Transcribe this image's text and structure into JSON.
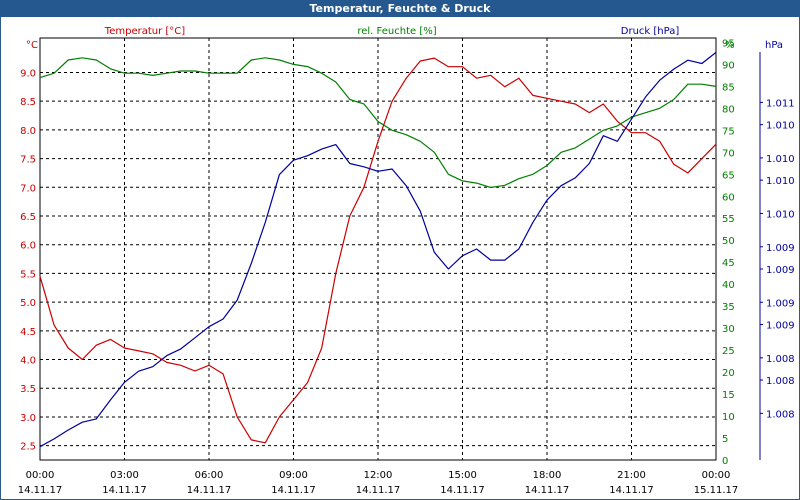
{
  "window": {
    "title": "Temperatur, Feuchte & Druck"
  },
  "colors": {
    "temp": "#cc0000",
    "humidity": "#008000",
    "pressure": "#00009c",
    "grid": "#000000",
    "title_bg": "#24588f"
  },
  "chart_data": {
    "type": "line",
    "title": "Temperatur, Feuchte & Druck",
    "x": [
      "00:00",
      "00:30",
      "01:00",
      "01:30",
      "02:00",
      "02:30",
      "03:00",
      "03:30",
      "04:00",
      "04:30",
      "05:00",
      "05:30",
      "06:00",
      "06:30",
      "07:00",
      "07:30",
      "08:00",
      "08:30",
      "09:00",
      "09:30",
      "10:00",
      "10:30",
      "11:00",
      "11:30",
      "12:00",
      "12:30",
      "13:00",
      "13:30",
      "14:00",
      "14:30",
      "15:00",
      "15:30",
      "16:00",
      "16:30",
      "17:00",
      "17:30",
      "18:00",
      "18:30",
      "19:00",
      "19:30",
      "20:00",
      "20:30",
      "21:00",
      "21:30",
      "22:00",
      "22:30",
      "23:00",
      "23:30",
      "24:00"
    ],
    "x_ticks": [
      {
        "time": "00:00",
        "date": "14.11.17"
      },
      {
        "time": "03:00",
        "date": "14.11.17"
      },
      {
        "time": "06:00",
        "date": "14.11.17"
      },
      {
        "time": "09:00",
        "date": "14.11.17"
      },
      {
        "time": "12:00",
        "date": "14.11.17"
      },
      {
        "time": "15:00",
        "date": "14.11.17"
      },
      {
        "time": "18:00",
        "date": "14.11.17"
      },
      {
        "time": "21:00",
        "date": "14.11.17"
      },
      {
        "time": "00:00",
        "date": "15.11.17"
      }
    ],
    "series": [
      {
        "name": "Temperatur [°C]",
        "axis": "left",
        "color": "#cc0000",
        "values": [
          5.45,
          4.6,
          4.2,
          4.0,
          4.25,
          4.35,
          4.2,
          4.15,
          4.1,
          3.95,
          3.9,
          3.8,
          3.9,
          3.75,
          3.0,
          2.6,
          2.55,
          3.0,
          3.3,
          3.6,
          4.2,
          5.5,
          6.5,
          7.0,
          7.8,
          8.5,
          8.9,
          9.2,
          9.25,
          9.1,
          9.1,
          8.9,
          8.95,
          8.75,
          8.9,
          8.6,
          8.55,
          8.5,
          8.45,
          8.3,
          8.45,
          8.15,
          7.95,
          7.95,
          7.8,
          7.4,
          7.25,
          7.5,
          7.75
        ]
      },
      {
        "name": "rel. Feuchte [%]",
        "axis": "right1",
        "color": "#008000",
        "values": [
          87,
          88,
          91,
          91.5,
          91,
          89,
          88,
          88,
          87.5,
          88,
          88.5,
          88.5,
          88,
          88,
          88,
          91,
          91.5,
          91,
          90,
          89.5,
          88,
          86,
          82,
          81,
          77,
          75,
          74,
          72.5,
          70,
          65,
          63.5,
          63,
          62,
          62.5,
          64,
          65,
          67,
          70,
          71,
          73,
          75,
          76,
          78,
          79,
          80,
          82,
          85.5,
          85.5,
          85
        ]
      },
      {
        "name": "Druck [hPa]",
        "axis": "right2",
        "color": "#00009c",
        "values": [
          1.0075,
          1.00757,
          1.00765,
          1.00772,
          1.00775,
          1.00792,
          1.00808,
          1.00818,
          1.00822,
          1.00832,
          1.00838,
          1.00848,
          1.00858,
          1.00865,
          1.00882,
          1.00915,
          1.00952,
          1.00995,
          1.01008,
          1.01012,
          1.01018,
          1.01022,
          1.01005,
          1.01002,
          1.00998,
          1.01,
          1.00985,
          1.00962,
          1.00925,
          1.0091,
          1.00922,
          1.00928,
          1.00918,
          1.00918,
          1.00928,
          1.00952,
          1.00972,
          1.00985,
          1.00992,
          1.01005,
          1.0103,
          1.01025,
          1.01045,
          1.01065,
          1.0108,
          1.0109,
          1.01098,
          1.01095,
          1.01105
        ]
      }
    ],
    "axes": {
      "left": {
        "label": "Temperatur [°C]",
        "unit": "°C",
        "ylim": [
          2.25,
          9.6
        ],
        "ticks": [
          "2.5",
          "3.0",
          "3.5",
          "4.0",
          "4.5",
          "5.0",
          "5.5",
          "6.0",
          "6.5",
          "7.0",
          "7.5",
          "8.0",
          "8.5",
          "9.0"
        ],
        "tick_values": [
          2.5,
          3.0,
          3.5,
          4.0,
          4.5,
          5.0,
          5.5,
          6.0,
          6.5,
          7.0,
          7.5,
          8.0,
          8.5,
          9.0
        ]
      },
      "right1": {
        "label": "rel. Feuchte [%]",
        "unit": "%",
        "ylim": [
          0,
          96
        ],
        "ticks": [
          "0",
          "5",
          "10",
          "15",
          "20",
          "25",
          "30",
          "35",
          "40",
          "45",
          "50",
          "55",
          "60",
          "65",
          "70",
          "75",
          "80",
          "85",
          "90",
          "95"
        ],
        "tick_values": [
          0,
          5,
          10,
          15,
          20,
          25,
          30,
          35,
          40,
          45,
          50,
          55,
          60,
          65,
          70,
          75,
          80,
          85,
          90,
          95
        ]
      },
      "right2": {
        "label": "Druck [hPa]",
        "unit": "hPa",
        "ylim": [
          1.00738,
          1.01118
        ],
        "ticks": [
          "1.008",
          "1.008",
          "1.008",
          "1.009",
          "1.009",
          "1.009",
          "1.009",
          "1.010",
          "1.010",
          "1.010",
          "1.010",
          "1.011"
        ],
        "tick_values": [
          1.0078,
          1.0081,
          1.0083,
          1.0086,
          1.0088,
          1.0091,
          1.0093,
          1.0096,
          1.0099,
          1.0101,
          1.0104,
          1.0106
        ]
      }
    },
    "grid": true
  }
}
